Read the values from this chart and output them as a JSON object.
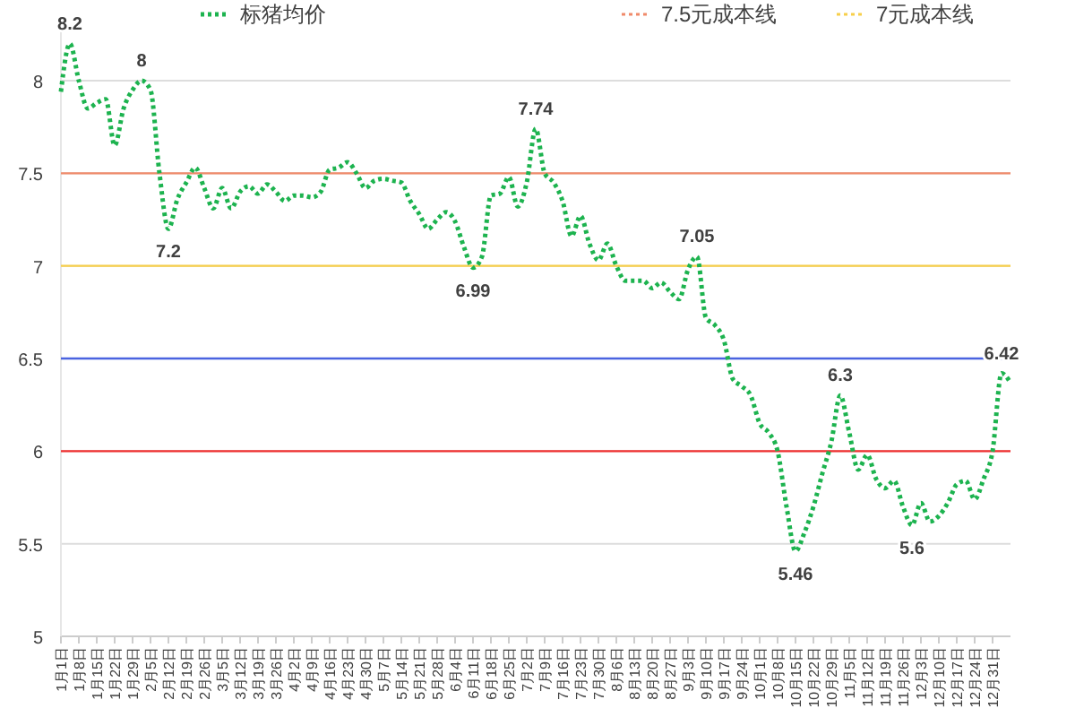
{
  "chart_data": {
    "type": "line",
    "categories": [
      "1月1日",
      null,
      "1月8日",
      null,
      "1月15日",
      null,
      "1月22日",
      null,
      "1月29日",
      null,
      "2月5日",
      null,
      "2月12日",
      null,
      "2月19日",
      null,
      "2月26日",
      null,
      "3月5日",
      null,
      "3月12日",
      null,
      "3月19日",
      null,
      "3月26日",
      null,
      "4月2日",
      null,
      "4月9日",
      null,
      "4月16日",
      null,
      "4月23日",
      null,
      "4月30日",
      null,
      "5月7日",
      null,
      "5月14日",
      null,
      "5月21日",
      null,
      "5月28日",
      null,
      "6月4日",
      null,
      "6月11日",
      null,
      "6月18日",
      null,
      "6月25日",
      null,
      "7月2日",
      null,
      "7月9日",
      null,
      "7月16日",
      null,
      "7月23日",
      null,
      "7月30日",
      null,
      "8月6日",
      null,
      "8月13日",
      null,
      "8月20日",
      null,
      "8月27日",
      null,
      "9月3日",
      null,
      "9月10日",
      null,
      "9月17日",
      null,
      "9月24日",
      null,
      "10月1日",
      null,
      "10月8日",
      null,
      "10月15日",
      null,
      "10月22日",
      null,
      "10月29日",
      null,
      "11月5日",
      null,
      "11月12日",
      null,
      "11月19日",
      null,
      "11月26日",
      null,
      "12月3日",
      null,
      "12月10日",
      null,
      "12月17日",
      null,
      "12月24日",
      null,
      "12月31日",
      null,
      null
    ],
    "series": [
      {
        "name": "标猪均价",
        "color": "#1db34f",
        "values": [
          7.94,
          8.2,
          8.0,
          7.85,
          7.88,
          7.9,
          7.65,
          7.85,
          7.95,
          8.0,
          7.95,
          7.5,
          7.2,
          7.36,
          7.45,
          7.53,
          7.42,
          7.31,
          7.42,
          7.31,
          7.4,
          7.43,
          7.39,
          7.44,
          7.4,
          7.35,
          7.38,
          7.38,
          7.37,
          7.4,
          7.52,
          7.53,
          7.56,
          7.5,
          7.42,
          7.46,
          7.47,
          7.46,
          7.45,
          7.35,
          7.28,
          7.2,
          7.25,
          7.29,
          7.24,
          7.1,
          6.99,
          7.05,
          7.38,
          7.39,
          7.48,
          7.32,
          7.45,
          7.74,
          7.5,
          7.45,
          7.35,
          7.16,
          7.27,
          7.12,
          7.03,
          7.12,
          7.0,
          6.92,
          6.92,
          6.92,
          6.88,
          6.91,
          6.86,
          6.82,
          6.98,
          7.05,
          6.72,
          6.68,
          6.6,
          6.39,
          6.35,
          6.3,
          6.15,
          6.1,
          6.0,
          5.7,
          5.46,
          5.56,
          5.7,
          5.88,
          6.05,
          6.3,
          6.1,
          5.9,
          5.98,
          5.85,
          5.8,
          5.84,
          5.7,
          5.6,
          5.72,
          5.62,
          5.65,
          5.72,
          5.82,
          5.84,
          5.74,
          5.85,
          6.0,
          6.42,
          6.37
        ],
        "value_labels": [
          null,
          "8.2",
          null,
          null,
          null,
          null,
          null,
          null,
          null,
          "8",
          null,
          null,
          "7.2",
          null,
          null,
          null,
          null,
          null,
          null,
          null,
          null,
          null,
          null,
          null,
          null,
          null,
          null,
          null,
          null,
          null,
          null,
          null,
          null,
          null,
          null,
          null,
          null,
          null,
          null,
          null,
          null,
          null,
          null,
          null,
          null,
          null,
          "6.99",
          null,
          null,
          null,
          null,
          null,
          null,
          "7.74",
          null,
          null,
          null,
          null,
          null,
          null,
          null,
          null,
          null,
          null,
          null,
          null,
          null,
          null,
          null,
          null,
          null,
          "7.05",
          null,
          null,
          null,
          null,
          null,
          null,
          null,
          null,
          null,
          null,
          "5.46",
          null,
          null,
          null,
          null,
          "6.3",
          null,
          null,
          null,
          null,
          null,
          null,
          null,
          "5.6",
          null,
          null,
          null,
          null,
          null,
          null,
          null,
          null,
          null,
          "6.42",
          null
        ]
      }
    ],
    "ylim": [
      5,
      8.3
    ],
    "yticks": [
      5,
      5.5,
      6,
      6.5,
      7,
      7.5,
      8
    ],
    "grid": "y",
    "legend": "top",
    "line_style": "dotted",
    "marker": "none",
    "ref_lines": [
      {
        "axis": "y",
        "value": 7.5,
        "label": "7.5元成本线",
        "color": "#f08a6a"
      },
      {
        "axis": "y",
        "value": 7,
        "label": "7元成本线",
        "color": "#f7cf4a"
      },
      {
        "axis": "y",
        "value": 6.5,
        "label": null,
        "color": "#4a63e0"
      },
      {
        "axis": "y",
        "value": 6,
        "label": null,
        "color": "#f03030"
      }
    ]
  }
}
